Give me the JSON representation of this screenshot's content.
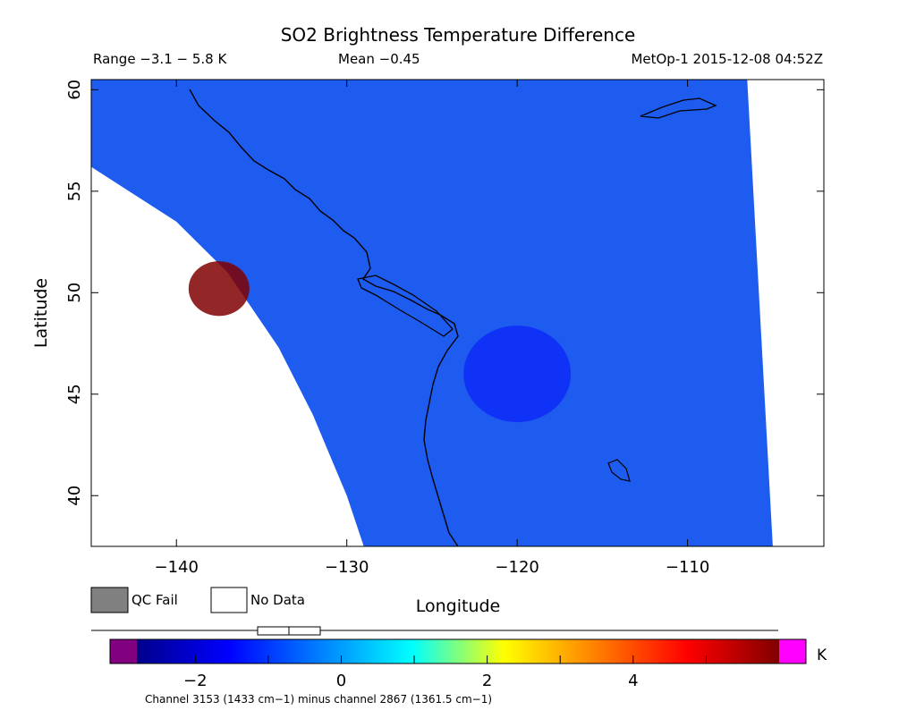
{
  "header": {
    "title": "SO2 Brightness Temperature Difference",
    "range_text": "Range −3.1 − 5.8 K",
    "mean_text": "Mean −0.45",
    "source_text": "MetOp-1 2015-12-08 04:52Z"
  },
  "legend": {
    "qc_fail_label": "QC Fail",
    "no_data_label": "No Data",
    "qc_fail_color": "#808080",
    "no_data_color": "#ffffff"
  },
  "colorbar": {
    "unit": "K",
    "caption": "Channel 3153 (1433 cm−1) minus channel 2867 (1361.5 cm−1)",
    "ticks": [
      "−2",
      "0",
      "2",
      "4"
    ],
    "tick_values": [
      -2,
      0,
      2,
      4
    ],
    "min": -2.8,
    "max": 6.0,
    "under_color": "#800080",
    "over_color": "#ff00ff",
    "stops": [
      "#00008b",
      "#0000ff",
      "#0080ff",
      "#00ffff",
      "#ffff00",
      "#ff8000",
      "#ff0000",
      "#800000"
    ],
    "mean_value": -0.45
  },
  "chart_data": {
    "type": "heatmap",
    "title": "SO2 Brightness Temperature Difference",
    "xlabel": "Longitude",
    "ylabel": "Latitude",
    "xlim": [
      -145,
      -102
    ],
    "ylim": [
      37.5,
      60.5
    ],
    "xticks": [
      -140,
      -130,
      -120,
      -110
    ],
    "yticks": [
      40,
      45,
      50,
      55,
      60
    ],
    "value_range": [
      -3.1,
      5.8
    ],
    "mean": -0.45,
    "units": "K",
    "swath": {
      "west_edge": [
        [
          -145,
          56.2
        ],
        [
          -140,
          53.5
        ],
        [
          -137,
          51.0
        ],
        [
          -134,
          47.3
        ],
        [
          -132,
          44.0
        ],
        [
          -130,
          40.0
        ],
        [
          -129,
          37.5
        ]
      ],
      "east_edge": [
        [
          -106.5,
          60.5
        ],
        [
          -105.0,
          37.5
        ]
      ]
    },
    "features": [
      {
        "name": "SO2 plume",
        "lon": -137.5,
        "lat": 50.2,
        "value": 5.5
      },
      {
        "name": "low-value core",
        "lon": -120,
        "lat": 46,
        "value": -2.0
      }
    ]
  }
}
